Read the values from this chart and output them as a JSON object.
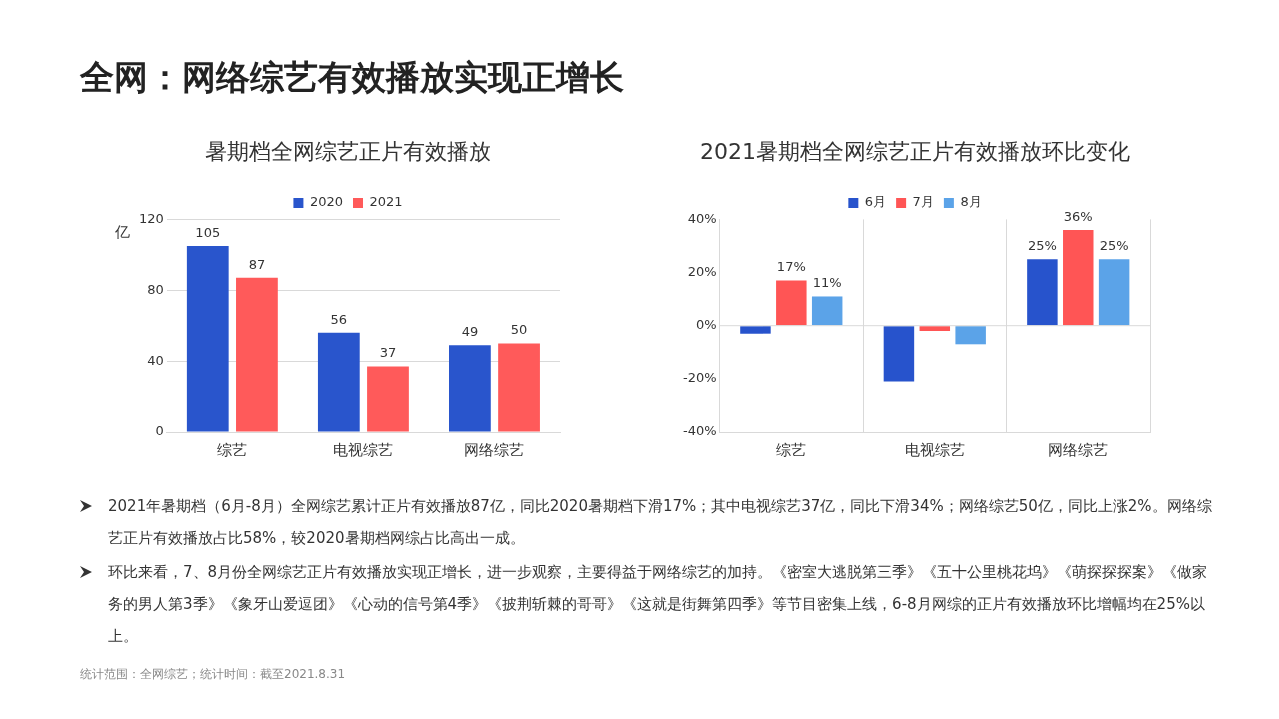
{
  "chart_data": [
    {
      "type": "other",
      "title": "全网：网络综艺有效播放实现正增长"
    },
    {
      "type": "bar",
      "title": "暑期档全网综艺正片有效播放",
      "ylabel": "亿",
      "categories": [
        "综艺",
        "电视综艺",
        "网络综艺"
      ],
      "series": [
        {
          "name": "2020",
          "color": "#2955cc",
          "values": [
            105,
            56,
            49
          ]
        },
        {
          "name": "2021",
          "color": "#ff5a5a",
          "values": [
            87,
            37,
            50
          ]
        }
      ],
      "ylim": [
        0,
        120
      ],
      "yticks": [
        0,
        40,
        80,
        120
      ],
      "grid": "y",
      "legend": "top",
      "data_labels": true
    },
    {
      "type": "bar",
      "title": "2021暑期档全网综艺正片有效播放环比变化",
      "categories": [
        "综艺",
        "电视综艺",
        "网络综艺"
      ],
      "series": [
        {
          "name": "6月",
          "color": "#2753cc",
          "values": [
            -3,
            -21,
            25
          ],
          "value_labels": [
            null,
            null,
            "25%"
          ]
        },
        {
          "name": "7月",
          "color": "#ff5555",
          "values": [
            17,
            -2,
            36
          ],
          "value_labels": [
            "17%",
            null,
            "36%"
          ]
        },
        {
          "name": "8月",
          "color": "#5ba3e8",
          "values": [
            11,
            -7,
            25
          ],
          "value_labels": [
            "11%",
            null,
            "25%"
          ]
        }
      ],
      "ylim": [
        -40,
        40
      ],
      "yticks": [
        {
          "value": -40,
          "label": "-40%"
        },
        {
          "value": -20,
          "label": "-20%"
        },
        {
          "value": 0,
          "label": "0%"
        },
        {
          "value": 20,
          "label": "20%"
        },
        {
          "value": 40,
          "label": "40%"
        }
      ],
      "grid": "x",
      "legend": "top",
      "ref_lines": [
        {
          "axis": "y",
          "value": 0,
          "color": "#d9d9d9"
        }
      ]
    },
    {
      "type": "other",
      "annotations": [
        "2021年暑期档（6月-8月）全网综艺累计正片有效播放87亿，同比2020暑期档下滑17%；其中电视综艺37亿，同比下滑34%；网络综艺50亿，同比上涨2%。网络综艺正片有效播放占比58%，较2020暑期档网综占比高出一成。",
        "环比来看，7、8月份全网综艺正片有效播放实现正增长，进一步观察，主要得益于网络综艺的加持。《密室大逃脱第三季》《五十公里桃花坞》《萌探探探案》《做家务的男人第3季》《象牙山爱逗团》《心动的信号第4季》《披荆斩棘的哥哥》《这就是街舞第四季》等节目密集上线，6-8月网综的正片有效播放环比增幅均在25%以上。",
        "统计范围：全网综艺；统计时间：截至2021.8.31"
      ]
    }
  ]
}
